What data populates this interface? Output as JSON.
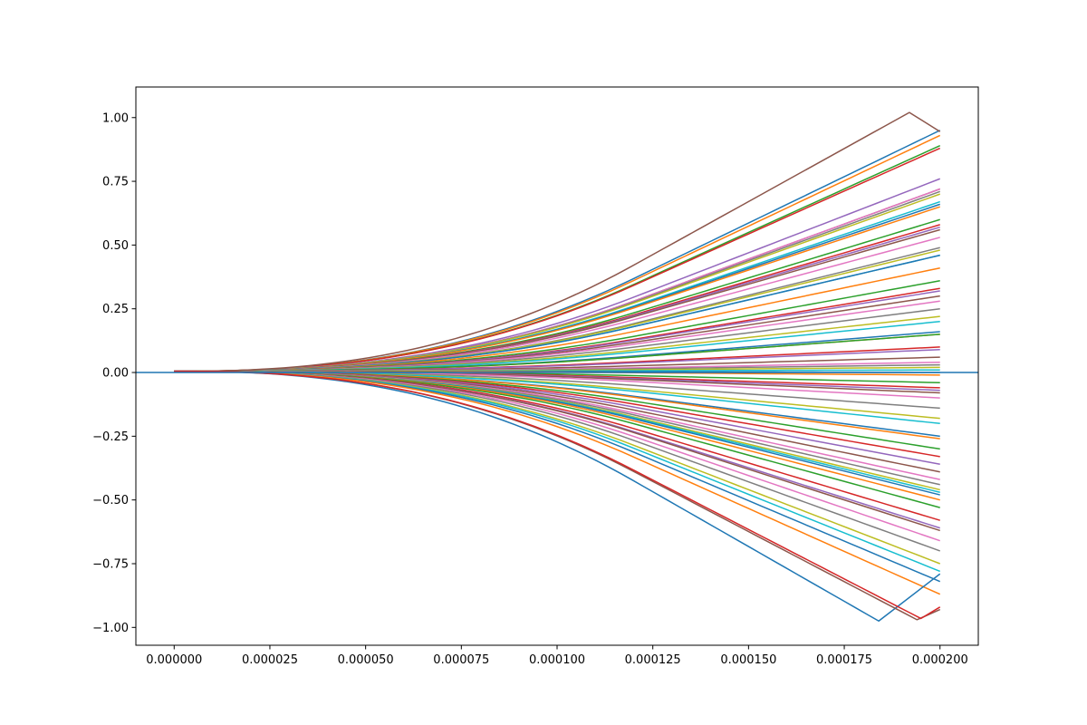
{
  "chart_data": {
    "type": "line",
    "title": "",
    "xlabel": "",
    "ylabel": "",
    "xlim": [
      -1e-05,
      0.00021
    ],
    "ylim": [
      -1.07,
      1.12
    ],
    "grid": false,
    "legend": "none",
    "x_ticks": [
      0,
      2.5e-05,
      5e-05,
      7.5e-05,
      0.0001,
      0.000125,
      0.00015,
      0.000175,
      0.0002
    ],
    "x_tick_labels": [
      "0.000000",
      "0.000025",
      "0.000050",
      "0.000075",
      "0.000100",
      "0.000125",
      "0.000150",
      "0.000175",
      "0.000200"
    ],
    "y_ticks": [
      -1.0,
      -0.75,
      -0.5,
      -0.25,
      0.0,
      0.25,
      0.5,
      0.75,
      1.0
    ],
    "y_tick_labels": [
      "−1.00",
      "−0.75",
      "−0.50",
      "−0.25",
      "0.00",
      "0.25",
      "0.50",
      "0.75",
      "1.00"
    ],
    "palette": [
      "#1f77b4",
      "#ff7f0e",
      "#2ca02c",
      "#d62728",
      "#9467bd",
      "#8c564b",
      "#e377c2",
      "#7f7f7f",
      "#bcbd22",
      "#17becf"
    ],
    "curve_shape": {
      "x_start": 0,
      "x_end": 0.0002,
      "x_knee": 0.00012,
      "start_value": 0.005,
      "final_values": [
        0.95,
        0.93,
        0.89,
        0.88,
        0.76,
        0.72,
        0.72,
        0.71,
        0.7,
        0.67,
        0.66,
        0.65,
        0.6,
        0.58,
        0.57,
        0.56,
        0.53,
        0.49,
        0.48,
        0.46,
        0.46,
        0.41,
        0.36,
        0.33,
        0.32,
        0.3,
        0.28,
        0.25,
        0.22,
        0.2,
        0.16,
        0.15,
        0.15,
        0.1,
        0.09,
        0.06,
        0.04,
        0.03,
        0.02,
        0.01,
        0.0,
        -0.01,
        -0.04,
        -0.06,
        -0.07,
        -0.08,
        -0.1,
        -0.14,
        -0.18,
        -0.2,
        -0.25,
        -0.26,
        -0.3,
        -0.33,
        -0.36,
        -0.39,
        -0.42,
        -0.44,
        -0.46,
        -0.47,
        -0.48,
        -0.5,
        -0.53,
        -0.58,
        -0.61,
        -0.62,
        -0.66,
        -0.7,
        -0.75,
        -0.78,
        -0.82,
        -0.87
      ],
      "peaked_series": [
        {
          "peak_x": 0.000192,
          "peak_y": 1.02,
          "end_y": 0.945,
          "color": "#8c564b"
        },
        {
          "peak_x": 0.000184,
          "peak_y": -0.975,
          "end_y": -0.79,
          "color": "#1f77b4"
        },
        {
          "peak_x": 0.000194,
          "peak_y": -0.97,
          "end_y": -0.93,
          "color": "#8c564b"
        },
        {
          "peak_x": 0.000195,
          "peak_y": -0.965,
          "end_y": -0.92,
          "color": "#d62728"
        }
      ],
      "flat_series_value": 0.0
    }
  }
}
